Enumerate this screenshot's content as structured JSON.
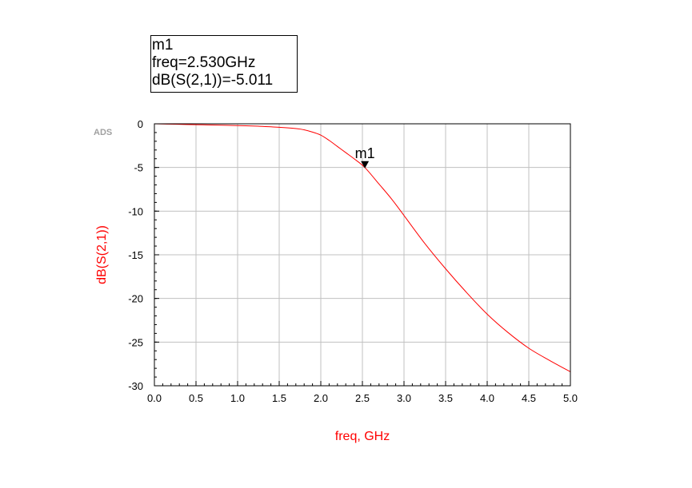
{
  "marker_readout": {
    "name": "m1",
    "freq_line": "freq=2.530GHz",
    "value_line": "dB(S(2,1))=-5.011"
  },
  "ads_tag": "ADS",
  "chart_data": {
    "type": "line",
    "title": "",
    "xlabel": "freq, GHz",
    "ylabel": "dB(S(2,1))",
    "xlim": [
      0,
      5
    ],
    "ylim": [
      -30,
      0
    ],
    "xticks": [
      "0.0",
      "0.5",
      "1.0",
      "1.5",
      "2.0",
      "2.5",
      "3.0",
      "3.5",
      "4.0",
      "4.5",
      "5.0"
    ],
    "yticks": [
      "0",
      "-5",
      "-10",
      "-15",
      "-20",
      "-25",
      "-30"
    ],
    "grid": true,
    "series": [
      {
        "color": "#ff0000",
        "x": [
          0.0,
          0.25,
          0.5,
          0.75,
          1.0,
          1.25,
          1.5,
          1.75,
          1.9,
          2.0,
          2.1,
          2.2,
          2.3,
          2.4,
          2.53,
          2.7,
          2.85,
          3.0,
          3.25,
          3.5,
          3.75,
          4.0,
          4.25,
          4.5,
          4.75,
          5.0
        ],
        "y": [
          0.0,
          -0.05,
          -0.1,
          -0.15,
          -0.2,
          -0.28,
          -0.4,
          -0.6,
          -0.95,
          -1.3,
          -1.9,
          -2.6,
          -3.3,
          -4.0,
          -5.011,
          -6.9,
          -8.6,
          -10.5,
          -13.7,
          -16.6,
          -19.3,
          -21.8,
          -23.9,
          -25.7,
          -27.1,
          -28.4
        ]
      }
    ],
    "markers": [
      {
        "label": "m1",
        "x": 2.53,
        "y": -5.011
      }
    ],
    "colors": {
      "axis_labels": "#ff0000",
      "grid": "#c0c0c0",
      "trace": "#ff0000"
    }
  }
}
